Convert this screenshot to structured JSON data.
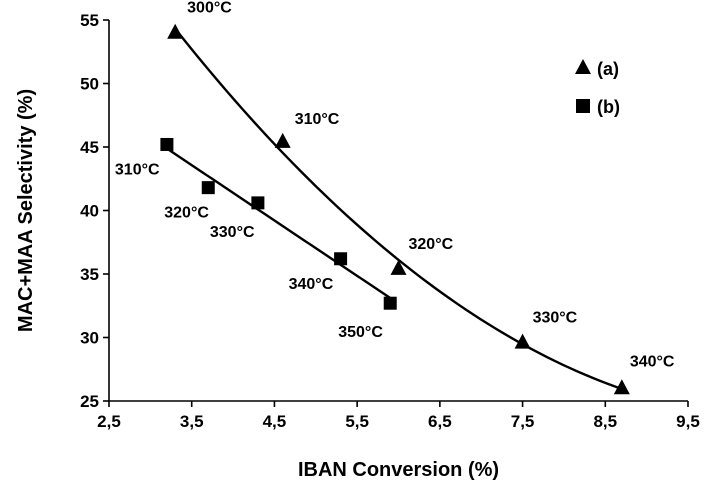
{
  "chart_data": {
    "type": "scatter",
    "xlabel": "IBAN Conversion (%)",
    "ylabel": "MAC+MAA Selectivity (%)",
    "xlim": [
      2.5,
      9.5
    ],
    "ylim": [
      25,
      55
    ],
    "x_ticks": [
      2.5,
      3.5,
      4.5,
      5.5,
      6.5,
      7.5,
      8.5,
      9.5
    ],
    "x_tick_labels": [
      "2,5",
      "3,5",
      "4,5",
      "5,5",
      "6,5",
      "7,5",
      "8,5",
      "9,5"
    ],
    "y_ticks": [
      25,
      30,
      35,
      40,
      45,
      50,
      55
    ],
    "y_tick_labels": [
      "25",
      "30",
      "35",
      "40",
      "45",
      "50",
      "55"
    ],
    "grid": false,
    "legend_position": "top-right",
    "series": [
      {
        "name": "(a)",
        "marker": "triangle",
        "color": "#000000",
        "trendline": "polynomial",
        "points": [
          {
            "x": 3.3,
            "y": 54.0,
            "label": "300°C"
          },
          {
            "x": 4.6,
            "y": 45.4,
            "label": "310°C"
          },
          {
            "x": 6.0,
            "y": 35.4,
            "label": "320°C"
          },
          {
            "x": 7.5,
            "y": 29.6,
            "label": "330°C"
          },
          {
            "x": 8.7,
            "y": 26.0,
            "label": "340°C"
          }
        ]
      },
      {
        "name": "(b)",
        "marker": "square",
        "color": "#000000",
        "trendline": "linear",
        "points": [
          {
            "x": 3.2,
            "y": 45.2,
            "label": "310°C"
          },
          {
            "x": 3.7,
            "y": 41.8,
            "label": "320°C"
          },
          {
            "x": 4.3,
            "y": 40.6,
            "label": "330°C"
          },
          {
            "x": 5.3,
            "y": 36.2,
            "label": "340°C"
          },
          {
            "x": 5.9,
            "y": 32.7,
            "label": "350°C"
          }
        ]
      }
    ]
  }
}
